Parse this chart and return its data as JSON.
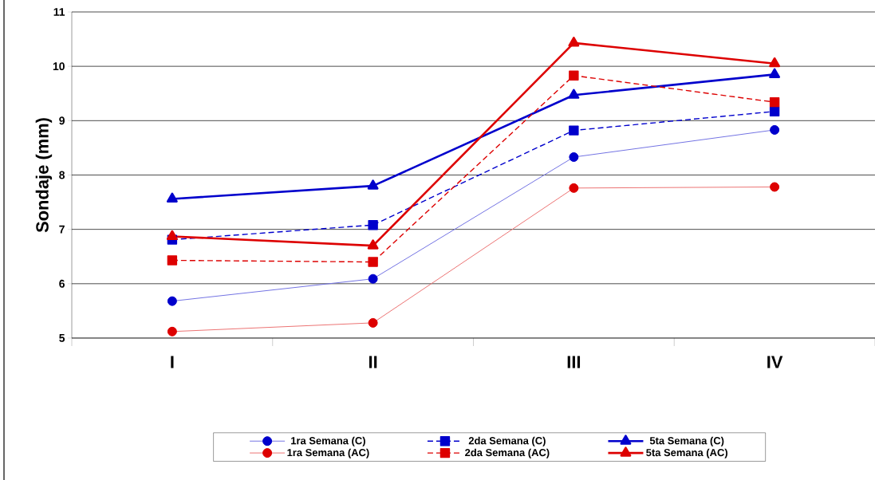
{
  "chart_data": {
    "type": "line",
    "ylabel": "Sondaje (mm)",
    "categories": [
      "I",
      "II",
      "III",
      "IV"
    ],
    "ylim": [
      5,
      11
    ],
    "yticks": [
      5,
      6,
      7,
      8,
      9,
      10,
      11
    ],
    "grid": "y",
    "legend": "bottom",
    "series": [
      {
        "name": "1ra Semana (C)",
        "color": "#0000cc",
        "marker": "circle",
        "line_style": "solid",
        "values": [
          5.68,
          6.09,
          8.33,
          8.83
        ]
      },
      {
        "name": "2da Semana (C)",
        "color": "#0000cc",
        "marker": "square",
        "line_style": "dashed",
        "values": [
          6.81,
          7.08,
          8.82,
          9.17
        ]
      },
      {
        "name": "5ta Semana (C)",
        "color": "#0000cc",
        "marker": "triangle",
        "line_style": "solid",
        "values": [
          7.56,
          7.8,
          9.47,
          9.85
        ]
      },
      {
        "name": "1ra Semana (AC)",
        "color": "#dd0000",
        "marker": "circle",
        "line_style": "solid",
        "values": [
          5.12,
          5.28,
          7.76,
          7.78
        ]
      },
      {
        "name": "2da Semana (AC)",
        "color": "#dd0000",
        "marker": "square",
        "line_style": "dashed",
        "values": [
          6.43,
          6.4,
          9.83,
          9.34
        ]
      },
      {
        "name": "5ta Semana (AC)",
        "color": "#dd0000",
        "marker": "triangle",
        "line_style": "solid",
        "values": [
          6.87,
          6.7,
          10.43,
          10.05
        ]
      }
    ]
  }
}
